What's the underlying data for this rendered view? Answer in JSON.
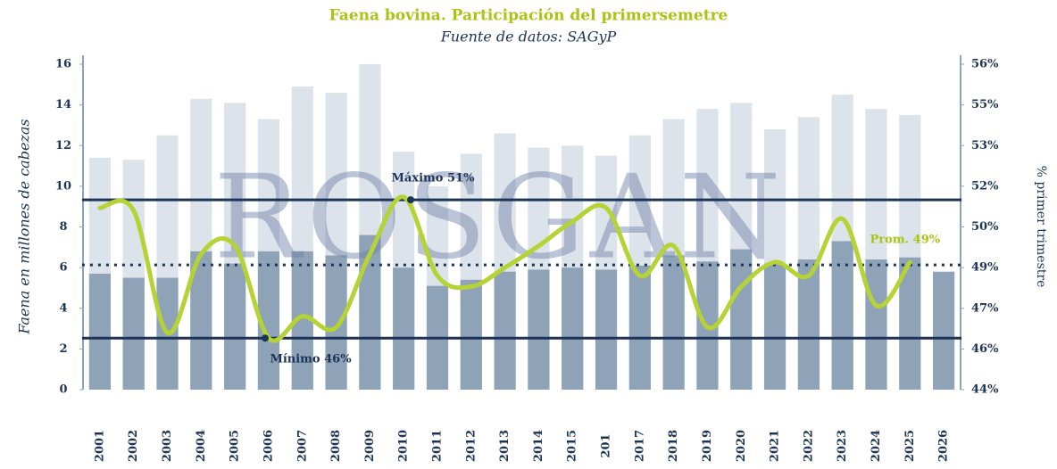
{
  "chart_data": {
    "type": "bar",
    "title": "Faena bovina. Participación del  primersemetre",
    "subtitle": "Fuente de datos: SAGyP",
    "watermark": "ROSGAN",
    "ylabel": "Faena en millones de cabezas",
    "y2label": "% primer trimestre",
    "categories": [
      "2001",
      "2002",
      "2003",
      "2004",
      "2005",
      "2006",
      "2007",
      "2008",
      "2009",
      "2010",
      "2011",
      "2012",
      "2013",
      "2014",
      "2015",
      "201",
      "2017",
      "2018",
      "2019",
      "2020",
      "2021",
      "2022",
      "2023",
      "2024",
      "2025",
      "2026"
    ],
    "series": [
      {
        "type": "bar",
        "color": "#dde3ea",
        "values": [
          11.4,
          11.3,
          12.5,
          14.3,
          14.1,
          13.3,
          14.9,
          14.6,
          16.0,
          11.7,
          10.0,
          11.6,
          12.6,
          11.9,
          12.0,
          11.5,
          12.5,
          13.3,
          13.8,
          14.1,
          12.8,
          13.4,
          14.5,
          13.8,
          13.5,
          null
        ]
      },
      {
        "type": "bar",
        "color": "#8ea2b8",
        "values": [
          5.7,
          5.5,
          5.5,
          6.8,
          6.2,
          6.8,
          6.8,
          6.6,
          7.6,
          6.0,
          5.1,
          5.4,
          5.8,
          5.9,
          6.0,
          5.9,
          6.1,
          6.6,
          6.3,
          6.9,
          6.2,
          6.4,
          7.3,
          6.4,
          6.5,
          5.8
        ]
      },
      {
        "type": "line",
        "axis": "y2",
        "color": "#b5d334",
        "values": [
          50.7,
          50.6,
          46.1,
          49.0,
          49.3,
          45.9,
          46.7,
          46.3,
          49.0,
          51.1,
          48.2,
          47.8,
          48.5,
          49.3,
          50.2,
          50.7,
          48.2,
          49.3,
          46.3,
          47.8,
          48.7,
          48.2,
          50.3,
          47.1,
          48.7,
          null
        ]
      }
    ],
    "hlines": [
      {
        "value": 51.0,
        "label": "Máximo 51%",
        "color": "#1d3456",
        "style": "solid"
      },
      {
        "value": 45.9,
        "label": "Mínimo 46%",
        "color": "#1d3456",
        "style": "solid"
      },
      {
        "value": 48.6,
        "label": "Prom. 49%",
        "color": "#1d3456",
        "style": "dotted",
        "label_color": "#a8c414"
      }
    ],
    "ylim": [
      0,
      16
    ],
    "yticks": [
      0,
      2,
      4,
      6,
      8,
      10,
      12,
      14,
      16
    ],
    "y2lim": [
      44,
      56
    ],
    "y2ticks": [
      {
        "value": 44,
        "label": "44%"
      },
      {
        "value": 45.5,
        "label": "46%"
      },
      {
        "value": 47,
        "label": "47%"
      },
      {
        "value": 48.5,
        "label": "49%"
      },
      {
        "value": 50,
        "label": "50%"
      },
      {
        "value": 51.5,
        "label": "52%"
      },
      {
        "value": 53,
        "label": "53%"
      },
      {
        "value": 54.5,
        "label": "55%"
      },
      {
        "value": 56,
        "label": "56%"
      }
    ]
  }
}
